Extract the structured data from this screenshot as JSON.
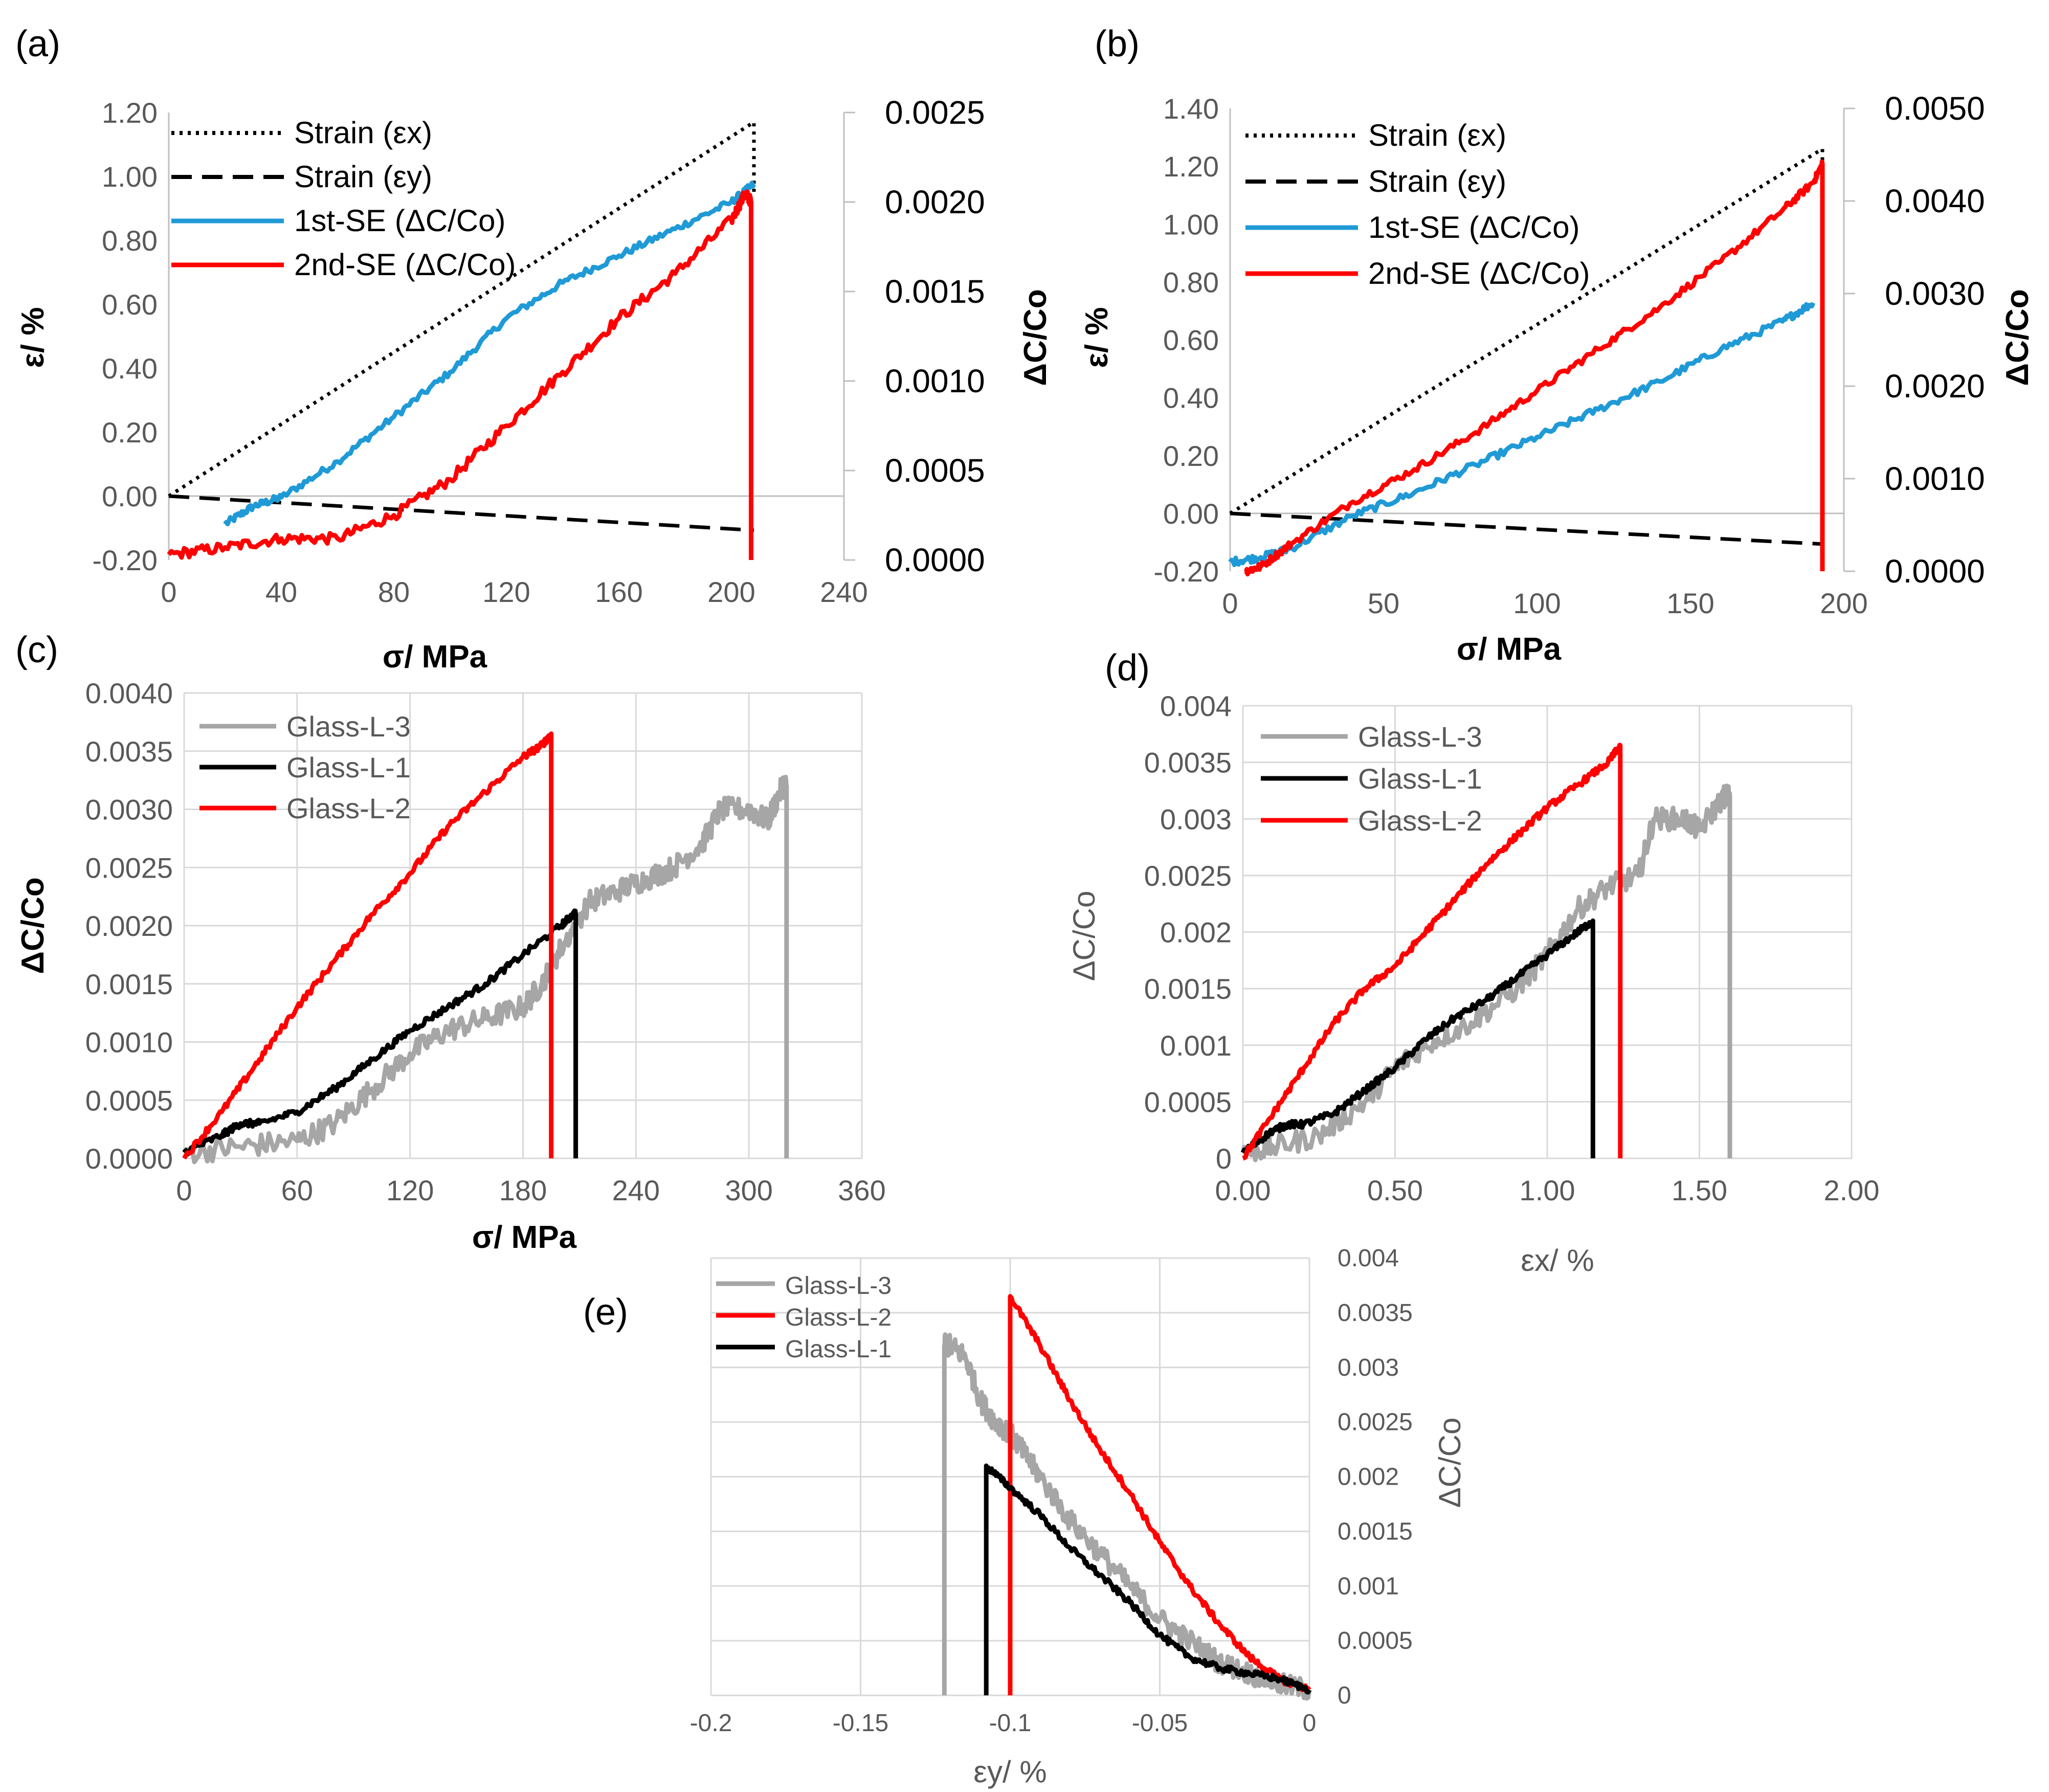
{
  "chart_data": [
    {
      "id": "a",
      "panel_label": "(a)",
      "type": "line",
      "xlabel": "σ/ MPa",
      "ylabel": "ε/ %",
      "y2label": "ΔC/Co",
      "xlim": [
        0,
        240
      ],
      "ylim": [
        -0.2,
        1.2
      ],
      "y2lim": [
        0,
        0.0025
      ],
      "x_ticks": [
        "0",
        "40",
        "80",
        "120",
        "160",
        "200",
        "240"
      ],
      "y_ticks": [
        "-0.20",
        "0.00",
        "0.20",
        "0.40",
        "0.60",
        "0.80",
        "1.00",
        "1.20"
      ],
      "y2_ticks": [
        "0.0000",
        "0.0005",
        "0.0010",
        "0.0015",
        "0.0020",
        "0.0025"
      ],
      "grid": false,
      "legend_position": "top-left",
      "series": [
        {
          "name": "Strain (εx)",
          "axis": "left",
          "color": "#000000",
          "style": "dotted",
          "x": [
            0,
            208,
            208
          ],
          "y": [
            0,
            1.17,
            0.95
          ]
        },
        {
          "name": "Strain (εy)",
          "axis": "left",
          "color": "#000000",
          "style": "dashed",
          "x": [
            0,
            208
          ],
          "y": [
            0,
            -0.107
          ]
        },
        {
          "name": "1st-SE (ΔC/Co)",
          "axis": "right",
          "color": "#1f9ad6",
          "style": "solid",
          "noise": 2e-05,
          "x": [
            20,
            30,
            40,
            60,
            80,
            100,
            120,
            140,
            160,
            180,
            200,
            208
          ],
          "y": [
            0.0002,
            0.0003,
            0.00035,
            0.00055,
            0.0008,
            0.00105,
            0.00135,
            0.00155,
            0.0017,
            0.00185,
            0.002,
            0.0021
          ]
        },
        {
          "name": "2nd-SE (ΔC/Co)",
          "axis": "right",
          "color": "#ff0000",
          "style": "solid",
          "noise": 3e-05,
          "x": [
            0,
            20,
            40,
            60,
            80,
            100,
            120,
            140,
            160,
            180,
            200,
            205,
            207,
            207,
            207
          ],
          "y": [
            3e-05,
            7e-05,
            0.00012,
            0.00012,
            0.00025,
            0.00045,
            0.00075,
            0.00105,
            0.00135,
            0.0016,
            0.0019,
            0.00205,
            0.002,
            0.0,
            0.0
          ]
        }
      ]
    },
    {
      "id": "b",
      "panel_label": "(b)",
      "type": "line",
      "xlabel": "σ/ MPa",
      "ylabel": "ε/ %",
      "y2label": "ΔC/Co",
      "xlim": [
        0,
        200
      ],
      "ylim": [
        -0.2,
        1.4
      ],
      "y2lim": [
        0,
        0.005
      ],
      "x_ticks": [
        "0",
        "50",
        "100",
        "150",
        "200"
      ],
      "y_ticks": [
        "-0.20",
        "0.00",
        "0.20",
        "0.40",
        "0.60",
        "0.80",
        "1.00",
        "1.20",
        "1.40"
      ],
      "y2_ticks": [
        "0.0000",
        "0.0010",
        "0.0020",
        "0.0030",
        "0.0040",
        "0.0050"
      ],
      "grid": false,
      "legend_position": "top-left",
      "series": [
        {
          "name": "Strain (εx)",
          "axis": "left",
          "color": "#000000",
          "style": "dotted",
          "x": [
            0,
            193,
            193
          ],
          "y": [
            0,
            1.26,
            0.95
          ]
        },
        {
          "name": "Strain (εy)",
          "axis": "left",
          "color": "#000000",
          "style": "dashed",
          "x": [
            0,
            193
          ],
          "y": [
            0,
            -0.106
          ]
        },
        {
          "name": "1st-SE (ΔC/Co)",
          "axis": "right",
          "color": "#1f9ad6",
          "style": "solid",
          "noise": 4e-05,
          "x": [
            0,
            10,
            20,
            40,
            60,
            80,
            100,
            120,
            140,
            160,
            180,
            190
          ],
          "y": [
            0.0001,
            0.00015,
            0.00025,
            0.0006,
            0.00085,
            0.00115,
            0.00145,
            0.00175,
            0.00205,
            0.0024,
            0.0027,
            0.0029
          ]
        },
        {
          "name": "2nd-SE (ΔC/Co)",
          "axis": "right",
          "color": "#ff0000",
          "style": "solid",
          "noise": 4e-05,
          "x": [
            5,
            10,
            20,
            40,
            60,
            80,
            100,
            120,
            140,
            160,
            180,
            190,
            193,
            193
          ],
          "y": [
            0.0,
            5e-05,
            0.0003,
            0.00075,
            0.0011,
            0.0015,
            0.00195,
            0.0024,
            0.00285,
            0.00335,
            0.0039,
            0.0042,
            0.0044,
            0.0
          ]
        }
      ]
    },
    {
      "id": "c",
      "panel_label": "(c)",
      "type": "line",
      "xlabel": "σ/ MPa",
      "ylabel": "ΔC/Co",
      "xlim": [
        0,
        360
      ],
      "ylim": [
        0,
        0.004
      ],
      "x_ticks": [
        "0",
        "60",
        "120",
        "180",
        "240",
        "300",
        "360"
      ],
      "y_ticks": [
        "0.0000",
        "0.0005",
        "0.0010",
        "0.0015",
        "0.0020",
        "0.0025",
        "0.0030",
        "0.0035",
        "0.0040"
      ],
      "grid": true,
      "legend_position": "top-left",
      "series": [
        {
          "name": "Glass-L-3",
          "color": "#a6a6a6",
          "style": "solid",
          "noise": 0.0001,
          "x": [
            0,
            30,
            60,
            80,
            100,
            120,
            140,
            160,
            180,
            190,
            200,
            215,
            230,
            245,
            260,
            275,
            285,
            300,
            310,
            318,
            320,
            320
          ],
          "y": [
            5e-05,
            0.0001,
            0.00015,
            0.0003,
            0.0006,
            0.0009,
            0.0011,
            0.0012,
            0.0013,
            0.0015,
            0.0018,
            0.0022,
            0.0023,
            0.0024,
            0.0025,
            0.0027,
            0.003,
            0.003,
            0.0029,
            0.0032,
            0.0032,
            0.0
          ]
        },
        {
          "name": "Glass-L-1",
          "color": "#000000",
          "style": "solid",
          "noise": 3e-05,
          "x": [
            0,
            20,
            30,
            40,
            60,
            80,
            100,
            120,
            140,
            160,
            180,
            200,
            207,
            208,
            208
          ],
          "y": [
            5e-05,
            0.0002,
            0.0003,
            0.0003,
            0.0004,
            0.0006,
            0.00085,
            0.0011,
            0.0013,
            0.0015,
            0.00175,
            0.002,
            0.0021,
            0.0021,
            0.0
          ]
        },
        {
          "name": "Glass-L-2",
          "color": "#ff0000",
          "style": "solid",
          "noise": 3e-05,
          "x": [
            0,
            20,
            40,
            60,
            80,
            100,
            120,
            140,
            160,
            180,
            190,
            195,
            195
          ],
          "y": [
            0.0,
            0.0004,
            0.00085,
            0.0013,
            0.0017,
            0.0021,
            0.00245,
            0.00285,
            0.00315,
            0.00345,
            0.00355,
            0.00365,
            0.0
          ]
        }
      ]
    },
    {
      "id": "d",
      "panel_label": "(d)",
      "type": "line",
      "xlabel": "εx/ %",
      "ylabel": "ΔC/Co",
      "xlim": [
        0,
        2
      ],
      "ylim": [
        0,
        0.004
      ],
      "x_ticks": [
        "0.00",
        "0.50",
        "1.00",
        "1.50",
        "2.00"
      ],
      "y_ticks": [
        "0",
        "0.0005",
        "0.001",
        "0.0015",
        "0.002",
        "0.0025",
        "0.003",
        "0.0035",
        "0.004"
      ],
      "grid": true,
      "legend_position": "top-left",
      "series": [
        {
          "name": "Glass-L-3",
          "color": "#a6a6a6",
          "style": "solid",
          "noise": 0.0001,
          "x": [
            0,
            0.1,
            0.25,
            0.4,
            0.5,
            0.6,
            0.75,
            0.9,
            1.0,
            1.1,
            1.2,
            1.3,
            1.35,
            1.45,
            1.5,
            1.58,
            1.6,
            1.6
          ],
          "y": [
            5e-05,
            0.0001,
            0.0002,
            0.0005,
            0.0008,
            0.001,
            0.0012,
            0.0015,
            0.0018,
            0.0022,
            0.0024,
            0.0025,
            0.003,
            0.003,
            0.0029,
            0.0032,
            0.0032,
            0.0
          ]
        },
        {
          "name": "Glass-L-1",
          "color": "#000000",
          "style": "solid",
          "noise": 3e-05,
          "x": [
            0,
            0.1,
            0.15,
            0.2,
            0.3,
            0.4,
            0.5,
            0.6,
            0.7,
            0.8,
            0.9,
            1.0,
            1.1,
            1.15,
            1.15
          ],
          "y": [
            5e-05,
            0.00025,
            0.0003,
            0.0003,
            0.0004,
            0.0006,
            0.0008,
            0.00105,
            0.00125,
            0.0014,
            0.0016,
            0.0018,
            0.002,
            0.0021,
            0.0
          ]
        },
        {
          "name": "Glass-L-2",
          "color": "#ff0000",
          "style": "solid",
          "noise": 3e-05,
          "x": [
            0,
            0.1,
            0.2,
            0.3,
            0.4,
            0.5,
            0.6,
            0.7,
            0.8,
            0.9,
            1.0,
            1.1,
            1.2,
            1.24,
            1.24
          ],
          "y": [
            0.0,
            0.0004,
            0.0008,
            0.0012,
            0.0015,
            0.0017,
            0.002,
            0.0023,
            0.0026,
            0.00285,
            0.0031,
            0.0033,
            0.0035,
            0.00365,
            0.0
          ]
        }
      ]
    },
    {
      "id": "e",
      "panel_label": "(e)",
      "type": "line",
      "xlabel": "εy/ %",
      "ylabel": "ΔC/Co",
      "xlim": [
        -0.2,
        0
      ],
      "ylim": [
        0,
        0.004
      ],
      "x_ticks": [
        "-0.2",
        "-0.15",
        "-0.1",
        "-0.05",
        "0"
      ],
      "y_ticks": [
        "0",
        "0.0005",
        "0.001",
        "0.0015",
        "0.002",
        "0.0025",
        "0.003",
        "0.0035",
        "0.004"
      ],
      "grid": true,
      "legend_position": "top-left",
      "series": [
        {
          "name": "Glass-L-3",
          "color": "#a6a6a6",
          "style": "solid",
          "noise": 0.0001,
          "x": [
            -0.122,
            -0.122,
            -0.12,
            -0.115,
            -0.11,
            -0.105,
            -0.1,
            -0.095,
            -0.09,
            -0.08,
            -0.07,
            -0.06,
            -0.05,
            -0.04,
            -0.03,
            -0.02,
            -0.01,
            0
          ],
          "y": [
            0.0,
            0.0032,
            0.0032,
            0.0031,
            0.0027,
            0.0025,
            0.0024,
            0.0022,
            0.002,
            0.0016,
            0.0013,
            0.001,
            0.0007,
            0.0005,
            0.0003,
            0.0002,
            0.0001,
            5e-05
          ]
        },
        {
          "name": "Glass-L-2",
          "color": "#ff0000",
          "style": "solid",
          "noise": 3e-05,
          "x": [
            -0.1,
            -0.1,
            -0.09,
            -0.08,
            -0.07,
            -0.06,
            -0.05,
            -0.04,
            -0.03,
            -0.02,
            -0.01,
            0
          ],
          "y": [
            0.0,
            0.00365,
            0.0032,
            0.0027,
            0.00225,
            0.00185,
            0.0014,
            0.001,
            0.00065,
            0.00035,
            0.00015,
            5e-05
          ]
        },
        {
          "name": "Glass-L-1",
          "color": "#000000",
          "style": "solid",
          "noise": 3e-05,
          "x": [
            -0.108,
            -0.108,
            -0.1,
            -0.09,
            -0.08,
            -0.07,
            -0.06,
            -0.05,
            -0.04,
            -0.03,
            -0.02,
            -0.01,
            0
          ],
          "y": [
            0.0,
            0.0021,
            0.0019,
            0.00165,
            0.00135,
            0.0011,
            0.00085,
            0.00055,
            0.00035,
            0.00025,
            0.0002,
            0.00015,
            5e-05
          ]
        }
      ]
    }
  ]
}
